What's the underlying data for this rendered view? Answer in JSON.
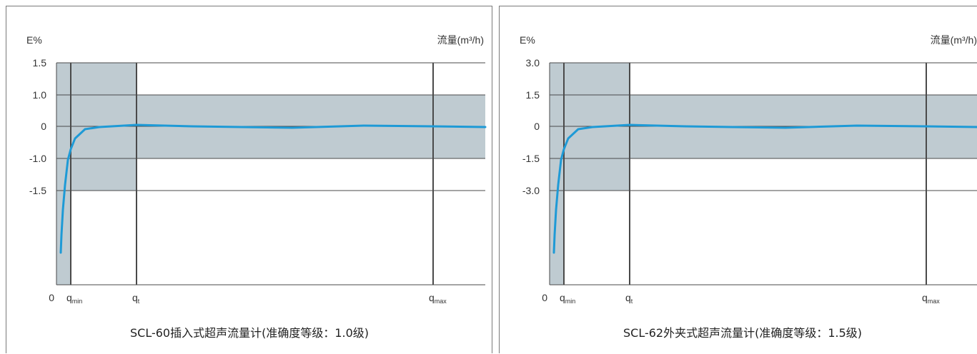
{
  "chart_data": [
    {
      "type": "line",
      "y_axis_title": "E%",
      "x_axis_title": "流量(m³/h)",
      "y_ticks": [
        "1.5",
        "1.0",
        "0",
        "-1.0",
        "-1.5"
      ],
      "x_ticks": [
        {
          "base": "0",
          "sub": ""
        },
        {
          "base": "q",
          "sub": "min"
        },
        {
          "base": "q",
          "sub": "t"
        },
        {
          "base": "q",
          "sub": "max"
        }
      ],
      "caption": "SCL-60插入式超声流量计(准确度等级：1.0级)",
      "error_band_low_flow": [
        -1.5,
        1.5
      ],
      "error_band_high_flow": [
        -1.0,
        1.0
      ],
      "series": [
        {
          "values": [
            -4.0,
            -2.5,
            -1.4,
            -0.6,
            -0.2,
            0.02,
            0.08,
            0.05,
            0.0,
            0.03,
            0.05,
            0.03,
            0.0,
            0.0
          ]
        }
      ],
      "grid": true,
      "color": "#1e9ad6",
      "band_color": "#bfcbd1"
    },
    {
      "type": "line",
      "y_axis_title": "E%",
      "x_axis_title": "流量(m³/h)",
      "y_ticks": [
        "3.0",
        "1.5",
        "0",
        "-1.5",
        "-3.0"
      ],
      "x_ticks": [
        {
          "base": "0",
          "sub": ""
        },
        {
          "base": "q",
          "sub": "min"
        },
        {
          "base": "q",
          "sub": "t"
        },
        {
          "base": "q",
          "sub": "max"
        }
      ],
      "caption": "SCL-62外夹式超声流量计(准确度等级：1.5级)",
      "error_band_low_flow": [
        -3.0,
        3.0
      ],
      "error_band_high_flow": [
        -1.5,
        1.5
      ],
      "series": [
        {
          "values": [
            -4.0,
            -2.5,
            -1.4,
            -0.6,
            -0.2,
            0.02,
            0.08,
            0.05,
            0.0,
            0.03,
            0.05,
            0.03,
            0.0,
            0.0
          ]
        }
      ],
      "grid": true,
      "color": "#1e9ad6",
      "band_color": "#bfcbd1"
    }
  ]
}
